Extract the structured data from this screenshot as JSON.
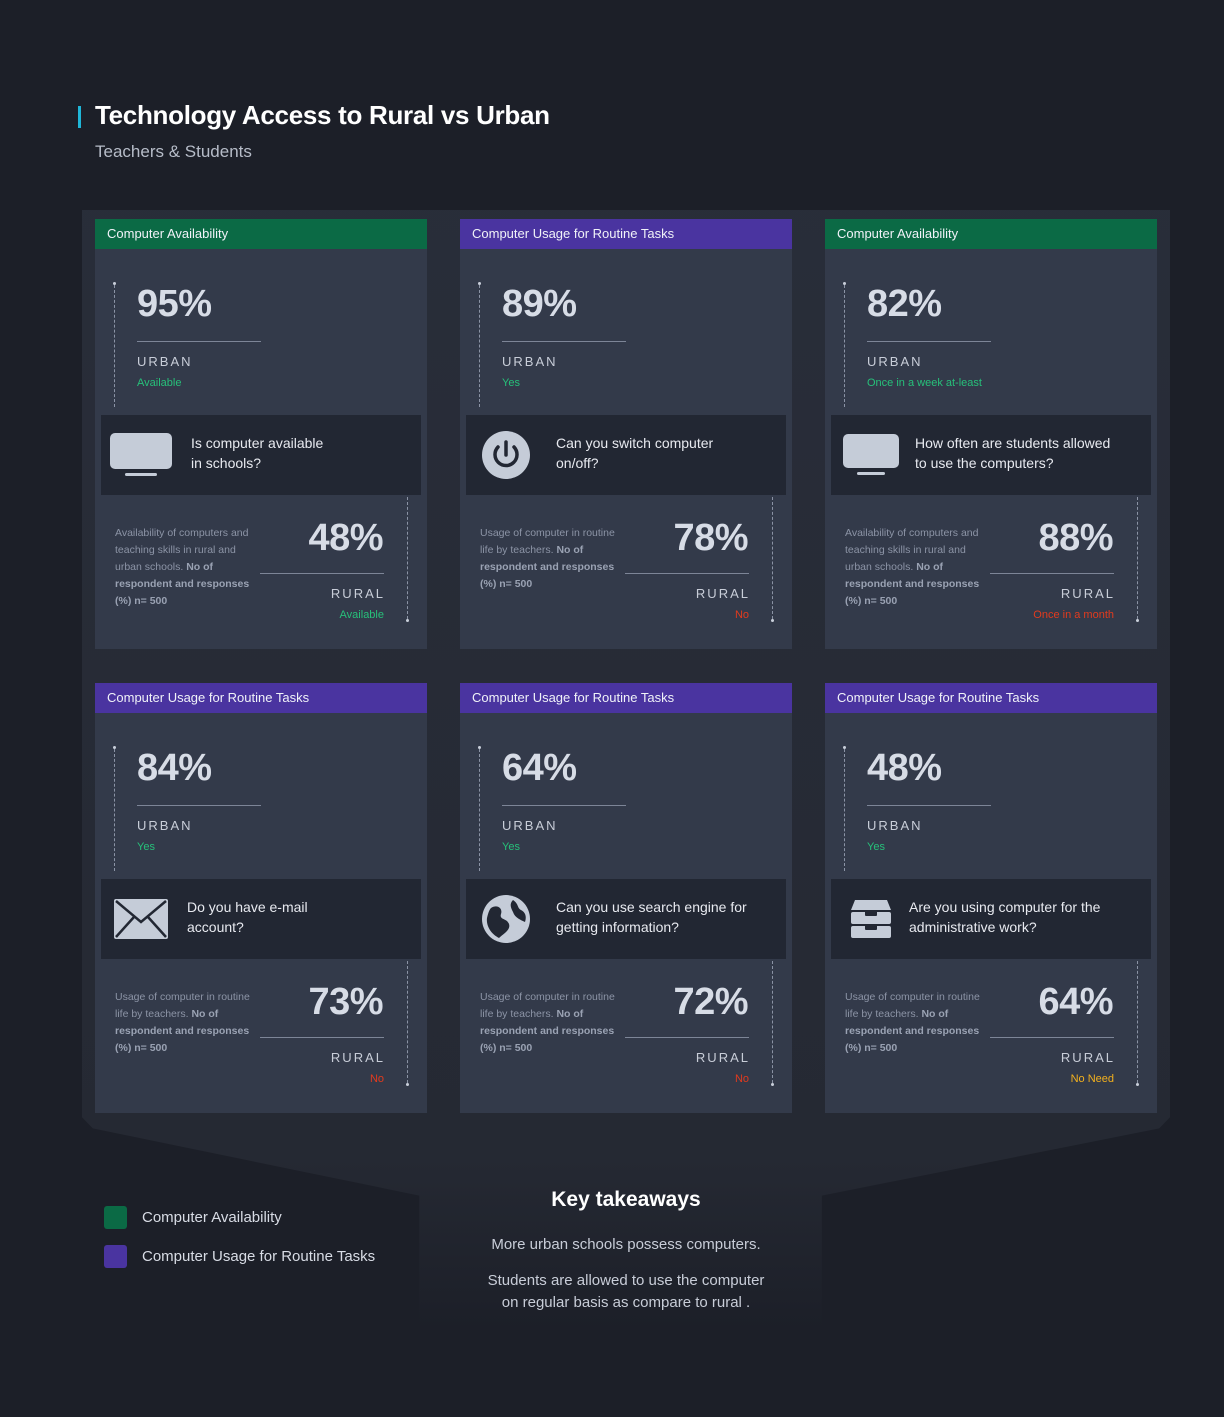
{
  "header": {
    "title": "Technology Access to Rural vs Urban",
    "subtitle": "Teachers & Students"
  },
  "colors": {
    "availability": "#0b6a45",
    "usage": "#4a34a0",
    "status_green": "#27c07a",
    "status_red": "#e23b1e",
    "status_orange": "#f2b01e",
    "accent": "#1fb6d8"
  },
  "cards": [
    {
      "category": "Computer Availability",
      "urban_pct": "95%",
      "urban_label": "URBAN",
      "urban_status": "Available",
      "icon": "monitor-icon",
      "question": "Is computer available in schools?",
      "desc_plain": "Availability of computers and teaching skills in rural and urban schools.",
      "desc_bold": "No of respondent and responses (%) n= 500",
      "rural_pct": "48%",
      "rural_label": "RURAL",
      "rural_status": "Available",
      "rural_status_color": "#27c07a"
    },
    {
      "category": "Computer Usage for Routine Tasks",
      "urban_pct": "89%",
      "urban_label": "URBAN",
      "urban_status": "Yes",
      "icon": "power-icon",
      "question": "Can you switch computer on/off?",
      "desc_plain": "Usage of computer in routine life by teachers.",
      "desc_bold": "No of respondent and responses (%) n= 500",
      "rural_pct": "78%",
      "rural_label": "RURAL",
      "rural_status": "No",
      "rural_status_color": "#e23b1e"
    },
    {
      "category": "Computer Availability",
      "urban_pct": "82%",
      "urban_label": "URBAN",
      "urban_status": "Once in a week at-least",
      "icon": "monitor-icon",
      "question": "How often are students allowed to use the computers?",
      "desc_plain": "Availability of computers and teaching skills in rural and urban schools.",
      "desc_bold": "No of respondent and responses (%) n= 500",
      "rural_pct": "88%",
      "rural_label": "RURAL",
      "rural_status": "Once in a month",
      "rural_status_color": "#e23b1e"
    },
    {
      "category": "Computer Usage for Routine Tasks",
      "urban_pct": "84%",
      "urban_label": "URBAN",
      "urban_status": "Yes",
      "icon": "mail-icon",
      "question": "Do you have e-mail account?",
      "desc_plain": "Usage of computer in routine life by teachers.",
      "desc_bold": "No of respondent and responses (%) n= 500",
      "rural_pct": "73%",
      "rural_label": "RURAL",
      "rural_status": "No",
      "rural_status_color": "#e23b1e"
    },
    {
      "category": "Computer Usage for Routine Tasks",
      "urban_pct": "64%",
      "urban_label": "URBAN",
      "urban_status": "Yes",
      "icon": "globe-icon",
      "question": "Can you use search engine for getting information?",
      "desc_plain": "Usage of computer in routine life by teachers.",
      "desc_bold": "No of respondent and responses (%) n= 500",
      "rural_pct": "72%",
      "rural_label": "RURAL",
      "rural_status": "No",
      "rural_status_color": "#e23b1e"
    },
    {
      "category": "Computer Usage for Routine Tasks",
      "urban_pct": "48%",
      "urban_label": "URBAN",
      "urban_status": "Yes",
      "icon": "briefcase-icon",
      "question": "Are you using computer for the administrative work?",
      "desc_plain": "Usage of computer in routine life by teachers.",
      "desc_bold": "No of respondent and responses (%) n= 500",
      "rural_pct": "64%",
      "rural_label": "RURAL",
      "rural_status": "No Need",
      "rural_status_color": "#f2b01e"
    }
  ],
  "legend": [
    {
      "label": "Computer Availability",
      "color": "#0b6a45"
    },
    {
      "label": "Computer Usage for Routine Tasks",
      "color": "#4a34a0"
    }
  ],
  "takeaways": {
    "title": "Key takeaways",
    "line1": "More urban schools possess computers.",
    "line2": "Students are allowed to use the computer on regular basis as compare to rural ."
  }
}
